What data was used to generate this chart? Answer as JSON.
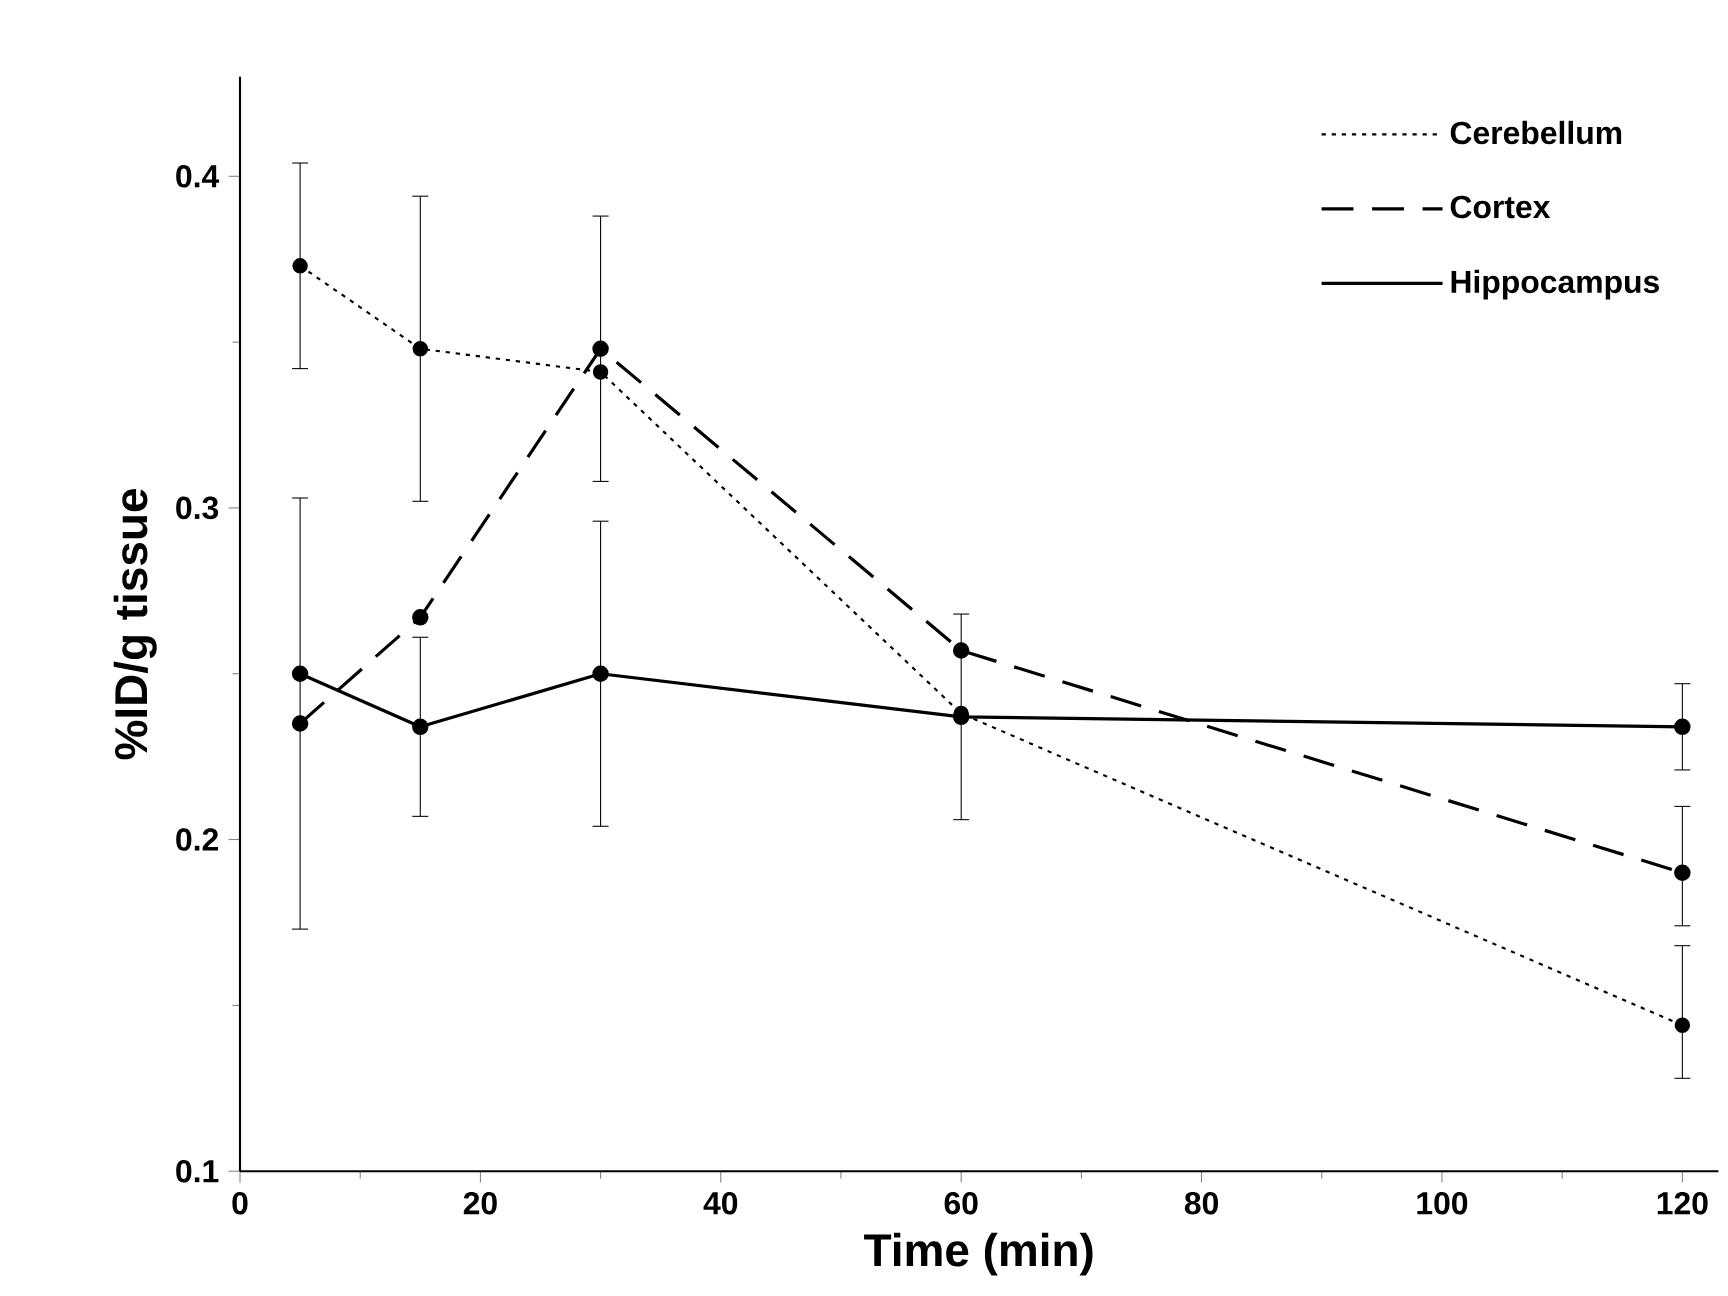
{
  "chart_data": {
    "type": "line",
    "xlabel": "Time (min)",
    "ylabel": "%ID/g tissue",
    "x": [
      5,
      15,
      30,
      60,
      120
    ],
    "series": [
      {
        "name": "Cerebellum",
        "color": "#000000",
        "line_style": "dotted",
        "values": [
          0.373,
          0.348,
          0.341,
          0.238,
          0.144
        ],
        "errors": [
          0.031,
          0.046,
          null,
          null,
          [
            0.128,
            0.168
          ]
        ]
      },
      {
        "name": "Cortex",
        "color": "#000000",
        "line_style": "dashed",
        "values": [
          0.235,
          0.267,
          0.348,
          0.257,
          0.19
        ],
        "errors": [
          [
            0.173,
            0.303
          ],
          null,
          0.04,
          null,
          [
            0.174,
            0.21
          ]
        ]
      },
      {
        "name": "Hippocampus",
        "color": "#000000",
        "line_style": "solid",
        "values": [
          0.25,
          0.234,
          0.25,
          0.237,
          0.234
        ],
        "errors": [
          null,
          0.027,
          0.046,
          0.031,
          0.013
        ]
      }
    ],
    "xlim": [
      0,
      123
    ],
    "ylim": [
      0.1,
      0.43
    ],
    "xticks": [
      0,
      20,
      40,
      60,
      80,
      100,
      120
    ],
    "yticks": [
      0.1,
      0.2,
      0.3,
      0.4
    ],
    "marker": "circle",
    "legend": "top right",
    "grid": false
  }
}
